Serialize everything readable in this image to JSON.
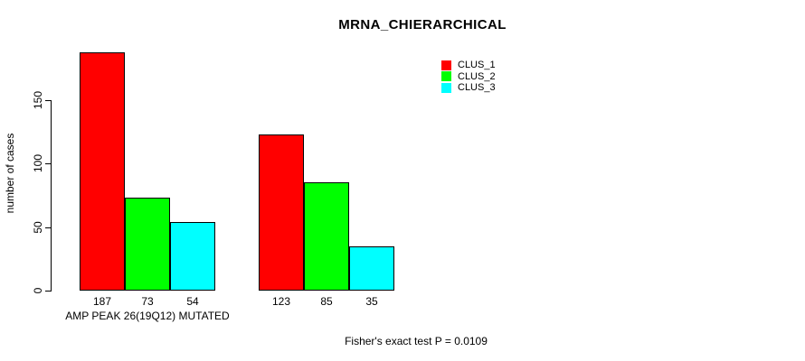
{
  "chart_data": {
    "type": "bar",
    "title": "MRNA_CHIERARCHICAL",
    "ylabel": "number of cases",
    "yticks": [
      0,
      50,
      100,
      150
    ],
    "ylim": [
      0,
      195
    ],
    "grid": false,
    "legend_position": "top-right",
    "series": [
      {
        "name": "CLUS_1",
        "color": "#ff0000"
      },
      {
        "name": "CLUS_2",
        "color": "#00ff00"
      },
      {
        "name": "CLUS_3",
        "color": "#00ffff"
      }
    ],
    "groups": [
      {
        "label": "AMP PEAK 26(19Q12) MUTATED",
        "values": [
          187,
          73,
          54
        ]
      },
      {
        "label": "",
        "values": [
          123,
          85,
          35
        ]
      }
    ],
    "value_labels_shown": true,
    "bar_border_color": "#000000",
    "axis_color": "#000000",
    "background_color": "#ffffff",
    "footnote": "Fisher's exact test P = 0.0109"
  }
}
